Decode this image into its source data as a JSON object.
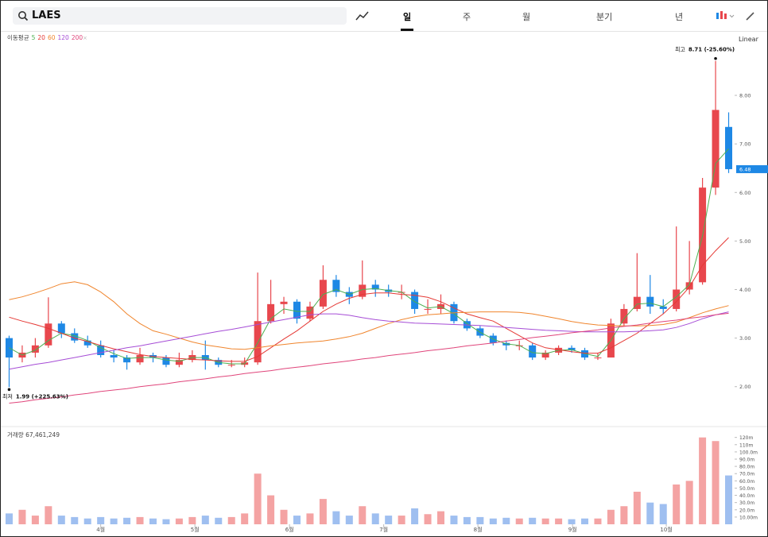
{
  "header": {
    "search": "LAES",
    "tabs": [
      "일",
      "주",
      "월",
      "분기",
      "년"
    ],
    "scale": "Linear"
  },
  "chart_data": {
    "type": "candlestick",
    "x": [
      0,
      3,
      6,
      9,
      12,
      15,
      18,
      21,
      24,
      27,
      30,
      33,
      36,
      39,
      42,
      45,
      48,
      51,
      54,
      57,
      60,
      63,
      66,
      69,
      72,
      75,
      78,
      81,
      84,
      87,
      90,
      93,
      96,
      99,
      102,
      105,
      108,
      111,
      114,
      117,
      120,
      123,
      126,
      129,
      132,
      135,
      138,
      141,
      144,
      147,
      150,
      153,
      156,
      159,
      162,
      165
    ],
    "xlim": [
      -1,
      166
    ],
    "xticks": [
      {
        "value": 21,
        "label": "4월"
      },
      {
        "value": 42.6,
        "label": "5월"
      },
      {
        "value": 64.3,
        "label": "6월"
      },
      {
        "value": 85.9,
        "label": "7월"
      },
      {
        "value": 107.5,
        "label": "8월"
      },
      {
        "value": 129.2,
        "label": "9월"
      },
      {
        "value": 150.7,
        "label": "10월"
      }
    ],
    "open": [
      3.0,
      2.6,
      2.7,
      2.85,
      3.3,
      3.1,
      2.95,
      2.85,
      2.65,
      2.6,
      2.5,
      2.65,
      2.6,
      2.45,
      2.55,
      2.65,
      2.55,
      2.45,
      2.45,
      2.5,
      3.35,
      3.7,
      3.75,
      3.4,
      3.65,
      4.2,
      3.95,
      3.85,
      4.1,
      4.0,
      3.95,
      3.95,
      3.6,
      3.6,
      3.7,
      3.35,
      3.2,
      3.05,
      2.9,
      2.85,
      2.85,
      2.6,
      2.7,
      2.8,
      2.75,
      2.6,
      2.6,
      3.3,
      3.6,
      3.85,
      3.65,
      3.6,
      4.0,
      4.15,
      6.1,
      7.35
    ],
    "high": [
      3.05,
      2.85,
      3.0,
      3.84,
      3.35,
      3.2,
      3.05,
      2.95,
      2.75,
      2.65,
      2.8,
      2.7,
      2.65,
      2.7,
      2.75,
      2.95,
      2.6,
      2.55,
      2.6,
      4.35,
      4.2,
      3.85,
      3.8,
      3.75,
      4.5,
      4.3,
      4.05,
      4.6,
      4.2,
      4.1,
      4.1,
      4.0,
      3.8,
      3.9,
      3.75,
      3.4,
      3.25,
      3.1,
      2.95,
      2.95,
      2.9,
      2.75,
      2.85,
      2.85,
      2.8,
      2.7,
      3.4,
      3.7,
      4.75,
      4.3,
      3.8,
      5.3,
      5.0,
      6.3,
      8.71,
      7.65
    ],
    "low": [
      1.99,
      2.5,
      2.6,
      2.8,
      3.0,
      2.9,
      2.8,
      2.6,
      2.5,
      2.35,
      2.45,
      2.5,
      2.4,
      2.4,
      2.5,
      2.35,
      2.4,
      2.4,
      2.4,
      2.45,
      3.3,
      3.5,
      3.3,
      3.35,
      3.6,
      3.85,
      3.7,
      3.8,
      3.85,
      3.85,
      3.8,
      3.5,
      3.5,
      3.5,
      3.3,
      3.15,
      3.0,
      2.85,
      2.75,
      2.75,
      2.55,
      2.55,
      2.65,
      2.7,
      2.55,
      2.55,
      2.6,
      3.25,
      3.55,
      3.5,
      3.5,
      3.55,
      3.9,
      4.1,
      5.95,
      6.4
    ],
    "close": [
      2.6,
      2.7,
      2.85,
      3.3,
      3.1,
      2.95,
      2.85,
      2.65,
      2.6,
      2.5,
      2.65,
      2.6,
      2.45,
      2.55,
      2.65,
      2.55,
      2.45,
      2.45,
      2.5,
      3.35,
      3.7,
      3.75,
      3.4,
      3.65,
      4.2,
      3.95,
      3.85,
      4.1,
      4.0,
      3.95,
      3.95,
      3.6,
      3.6,
      3.7,
      3.35,
      3.2,
      3.05,
      2.9,
      2.85,
      2.85,
      2.6,
      2.7,
      2.8,
      2.75,
      2.6,
      2.6,
      3.3,
      3.6,
      3.85,
      3.65,
      3.6,
      4.0,
      4.15,
      6.1,
      7.7,
      6.48
    ],
    "up_color": "#e8474d",
    "down_color": "#1e88e5",
    "ylim": [
      1.21,
      9.31
    ],
    "yticks": [
      {
        "value": 2,
        "label": "2.00"
      },
      {
        "value": 3,
        "label": "3.00"
      },
      {
        "value": 4,
        "label": "4.00"
      },
      {
        "value": 5,
        "label": "5.00"
      },
      {
        "value": 6,
        "label": "6.00"
      },
      {
        "value": 7,
        "label": "7.00"
      },
      {
        "value": 8,
        "label": "8.00"
      }
    ],
    "annotations": {
      "high": {
        "label": "최고",
        "text": "8.71 (-25.60%)"
      },
      "low": {
        "label": "최저",
        "text": "1.99 (+225.63%)"
      }
    },
    "moving_averages": {
      "label": "이동평균",
      "series": [
        {
          "name": "5",
          "color": "#4caf50",
          "values": [
            2.8,
            2.65,
            2.75,
            2.95,
            3.1,
            3.05,
            2.95,
            2.8,
            2.68,
            2.58,
            2.6,
            2.6,
            2.55,
            2.52,
            2.6,
            2.6,
            2.5,
            2.47,
            2.47,
            2.9,
            3.4,
            3.6,
            3.55,
            3.55,
            3.9,
            4.0,
            3.9,
            4.0,
            4.02,
            3.98,
            3.95,
            3.75,
            3.62,
            3.65,
            3.5,
            3.3,
            3.12,
            2.98,
            2.88,
            2.85,
            2.7,
            2.68,
            2.75,
            2.76,
            2.68,
            2.62,
            2.95,
            3.4,
            3.7,
            3.72,
            3.65,
            3.85,
            4.1,
            5.1,
            6.6,
            6.9
          ]
        },
        {
          "name": "20",
          "color": "#e53935",
          "values": [
            3.43,
            3.35,
            3.28,
            3.2,
            3.1,
            3.0,
            2.93,
            2.85,
            2.78,
            2.72,
            2.66,
            2.62,
            2.6,
            2.58,
            2.56,
            2.55,
            2.53,
            2.52,
            2.52,
            2.62,
            2.8,
            2.98,
            3.15,
            3.35,
            3.55,
            3.7,
            3.82,
            3.9,
            3.93,
            3.93,
            3.9,
            3.88,
            3.84,
            3.75,
            3.62,
            3.5,
            3.42,
            3.35,
            3.2,
            3.05,
            2.9,
            2.8,
            2.76,
            2.72,
            2.69,
            2.69,
            2.8,
            2.95,
            3.1,
            3.3,
            3.5,
            3.75,
            4.05,
            4.5,
            4.8,
            5.07
          ]
        },
        {
          "name": "60",
          "color": "#f0852d",
          "values": [
            3.79,
            3.85,
            3.93,
            4.02,
            4.12,
            4.16,
            4.1,
            3.95,
            3.75,
            3.5,
            3.3,
            3.15,
            3.08,
            3.0,
            2.92,
            2.86,
            2.82,
            2.78,
            2.77,
            2.8,
            2.84,
            2.87,
            2.9,
            2.92,
            2.94,
            2.98,
            3.03,
            3.1,
            3.2,
            3.3,
            3.38,
            3.44,
            3.48,
            3.5,
            3.52,
            3.53,
            3.54,
            3.54,
            3.54,
            3.53,
            3.5,
            3.45,
            3.4,
            3.34,
            3.3,
            3.27,
            3.26,
            3.25,
            3.25,
            3.26,
            3.28,
            3.33,
            3.42,
            3.52,
            3.6,
            3.67
          ]
        },
        {
          "name": "120",
          "color": "#a64dd6",
          "values": [
            2.36,
            2.41,
            2.46,
            2.5,
            2.55,
            2.6,
            2.65,
            2.7,
            2.75,
            2.8,
            2.84,
            2.89,
            2.94,
            2.99,
            3.04,
            3.09,
            3.14,
            3.18,
            3.23,
            3.28,
            3.33,
            3.38,
            3.43,
            3.48,
            3.5,
            3.5,
            3.47,
            3.42,
            3.38,
            3.35,
            3.33,
            3.31,
            3.3,
            3.29,
            3.28,
            3.27,
            3.26,
            3.24,
            3.22,
            3.2,
            3.18,
            3.16,
            3.15,
            3.14,
            3.13,
            3.13,
            3.13,
            3.13,
            3.14,
            3.15,
            3.17,
            3.22,
            3.3,
            3.4,
            3.48,
            3.54
          ]
        },
        {
          "name": "200",
          "color": "#e0457b",
          "values": [
            1.66,
            1.69,
            1.73,
            1.76,
            1.79,
            1.83,
            1.86,
            1.9,
            1.93,
            1.96,
            2.0,
            2.03,
            2.06,
            2.1,
            2.13,
            2.16,
            2.2,
            2.23,
            2.27,
            2.3,
            2.33,
            2.37,
            2.4,
            2.43,
            2.47,
            2.5,
            2.53,
            2.57,
            2.6,
            2.64,
            2.67,
            2.7,
            2.74,
            2.77,
            2.8,
            2.84,
            2.87,
            2.9,
            2.94,
            2.97,
            3.01,
            3.04,
            3.07,
            3.11,
            3.14,
            3.17,
            3.21,
            3.24,
            3.27,
            3.31,
            3.34,
            3.37,
            3.41,
            3.44,
            3.48,
            3.51
          ]
        }
      ]
    },
    "volume": {
      "label": "거래량 67,461,249",
      "up_color": "#f4a3a3",
      "down_color": "#9fbff0",
      "values": [
        15,
        20,
        12,
        25,
        12,
        10,
        8,
        10,
        8,
        9,
        10,
        8,
        7,
        8,
        10,
        12,
        9,
        10,
        15,
        70,
        40,
        20,
        12,
        15,
        35,
        18,
        12,
        25,
        15,
        12,
        12,
        22,
        14,
        18,
        12,
        10,
        10,
        8,
        9,
        8,
        9,
        8,
        8,
        7,
        8,
        8,
        20,
        25,
        45,
        30,
        28,
        55,
        60,
        120,
        115,
        67.461249
      ],
      "ylim": [
        0,
        135
      ],
      "yticks": [
        {
          "value": 120,
          "label": "120m"
        },
        {
          "value": 110,
          "label": "110m"
        },
        {
          "value": 100,
          "label": "100.0m"
        },
        {
          "value": 90,
          "label": "90.0m"
        },
        {
          "value": 80,
          "label": "80.0m"
        },
        {
          "value": 70,
          "label": "70.0m"
        },
        {
          "value": 60,
          "label": "60.0m"
        },
        {
          "value": 50,
          "label": "50.0m"
        },
        {
          "value": 40,
          "label": "40.0m"
        },
        {
          "value": 30,
          "label": "30.0m"
        },
        {
          "value": 20,
          "label": "20.0m"
        },
        {
          "value": 10,
          "label": "10.00m"
        }
      ]
    }
  }
}
